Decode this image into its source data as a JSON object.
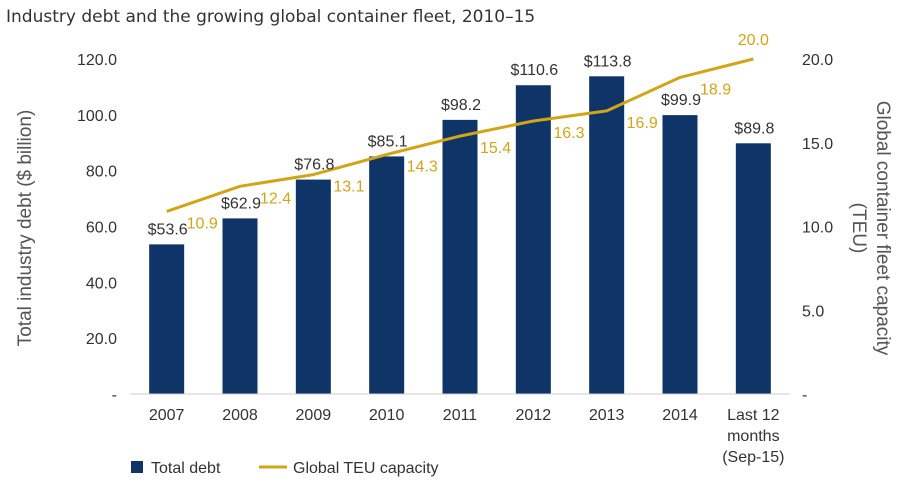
{
  "chart_data": {
    "type": "bar",
    "title": "Industry debt and the growing global container fleet, 2010–15",
    "categories": [
      "2007",
      "2008",
      "2009",
      "2010",
      "2011",
      "2012",
      "2013",
      "2014",
      "Last 12 months (Sep-15)"
    ],
    "category_lines": [
      [
        "2007"
      ],
      [
        "2008"
      ],
      [
        "2009"
      ],
      [
        "2010"
      ],
      [
        "2011"
      ],
      [
        "2012"
      ],
      [
        "2013"
      ],
      [
        "2014"
      ],
      [
        "Last 12",
        "months",
        "(Sep-15)"
      ]
    ],
    "series": [
      {
        "name": "Total debt",
        "type": "bar",
        "axis": "left",
        "values": [
          53.6,
          62.9,
          76.8,
          85.1,
          98.2,
          110.6,
          113.8,
          99.9,
          89.8
        ],
        "labels": [
          "$53.6",
          "$62.9",
          "$76.8",
          "$85.1",
          "$98.2",
          "$110.6",
          "$113.8",
          "$99.9",
          "$89.8"
        ]
      },
      {
        "name": "Global TEU capacity",
        "type": "line",
        "axis": "right",
        "values": [
          10.9,
          12.4,
          13.1,
          14.3,
          15.4,
          16.3,
          16.9,
          18.9,
          20.0
        ],
        "labels": [
          "10.9",
          "12.4",
          "13.1",
          "14.3",
          "15.4",
          "16.3",
          "16.9",
          "18.9",
          "20.0"
        ]
      }
    ],
    "ylabel": "Total industry debt ($ billion)",
    "y2label": "Global container fleet capacity (TEU)",
    "ylim": [
      0,
      120
    ],
    "y2lim": [
      0,
      20
    ],
    "yticks": [
      "-",
      "20.0",
      "40.0",
      "60.0",
      "80.0",
      "100.0",
      "120.0"
    ],
    "y2ticks": [
      "-",
      "5.0",
      "10.0",
      "15.0",
      "20.0"
    ],
    "grid": false,
    "legend": "bottom-left",
    "colors": {
      "bar": "#0e3468",
      "line": "#d1a516"
    }
  }
}
